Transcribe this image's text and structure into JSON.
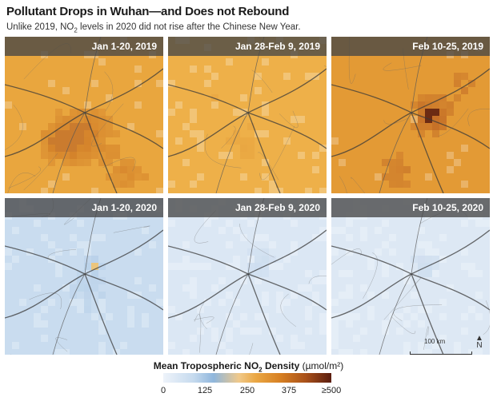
{
  "title": "Pollutant Drops in Wuhan—and Does not Rebound",
  "subtitle": {
    "before": "Unlike 2019, NO",
    "sub": "2",
    "after": " levels in 2020 did not rise after the Chinese New Year."
  },
  "panels": [
    {
      "label": "Jan 1-20, 2019",
      "year": 2019,
      "period": "Jan 1-20"
    },
    {
      "label": "Jan 28-Feb 9, 2019",
      "year": 2019,
      "period": "Jan 28-Feb 9"
    },
    {
      "label": "Feb 10-25, 2019",
      "year": 2019,
      "period": "Feb 10-25"
    },
    {
      "label": "Jan 1-20, 2020",
      "year": 2020,
      "period": "Jan 1-20"
    },
    {
      "label": "Jan 28-Feb 9, 2020",
      "year": 2020,
      "period": "Jan 28-Feb 9"
    },
    {
      "label": "Feb 10-25, 2020",
      "year": 2020,
      "period": "Feb 10-25"
    }
  ],
  "scale_bar": {
    "label": "100 km"
  },
  "north_arrow": {
    "label": "N",
    "icon": "north-arrow-icon"
  },
  "legend": {
    "title_before": "Mean Tropospheric NO",
    "title_sub": "2",
    "title_after": " Density ",
    "unit": "(µmol/m²)",
    "ticks": [
      "0",
      "125",
      "250",
      "375",
      "≥500"
    ],
    "colors": [
      "#eef3fa",
      "#8fb6dc",
      "#eaa744",
      "#d67f22",
      "#5a1d10"
    ]
  }
}
